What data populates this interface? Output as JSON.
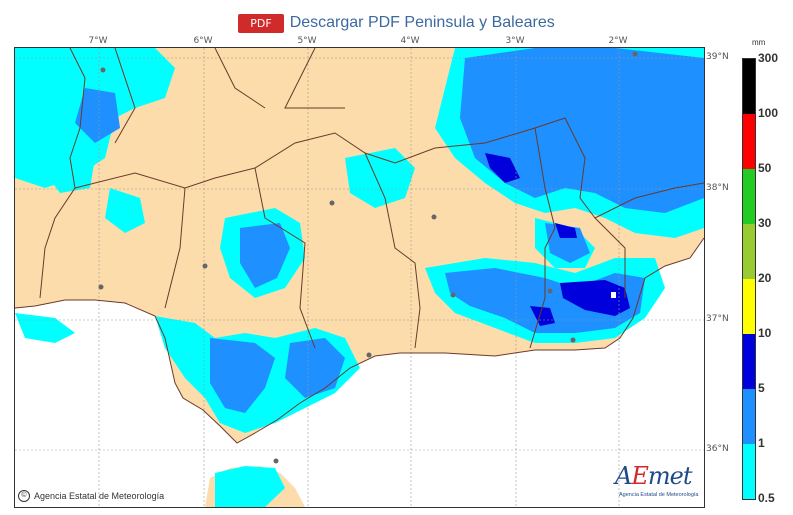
{
  "header": {
    "pdf_badge": "PDF",
    "link_text": "Descargar PDF Peninsula y Baleares"
  },
  "map": {
    "longitude_labels": [
      "7°W",
      "6°W",
      "5°W",
      "4°W",
      "3°W",
      "2°W"
    ],
    "latitude_labels": [
      "39°N",
      "38°N",
      "37°N",
      "36°N"
    ],
    "colors": {
      "land": "#fbdcaa",
      "sea": "#ffffff",
      "border": "#6b3a2a",
      "grid": "#999999"
    }
  },
  "legend": {
    "unit": "mm",
    "classes": [
      {
        "value": "300",
        "color": "#000000"
      },
      {
        "value": "100",
        "color": "#ff0000"
      },
      {
        "value": "50",
        "color": "#22cc22"
      },
      {
        "value": "30",
        "color": "#99cc33"
      },
      {
        "value": "20",
        "color": "#ffff00"
      },
      {
        "value": "10",
        "color": "#0000dd"
      },
      {
        "value": "5",
        "color": "#1e90ff"
      },
      {
        "value": "1",
        "color": "#00ffff"
      },
      {
        "value": "0.5",
        "color": null
      }
    ]
  },
  "footer": {
    "credit": "Agencia Estatal de Meteorología",
    "copyright_symbol": "©",
    "logo_text_a": "A",
    "logo_text_e": "E",
    "logo_text_rest": "met",
    "logo_subtitle": "Agencia Estatal de Meteorología"
  }
}
